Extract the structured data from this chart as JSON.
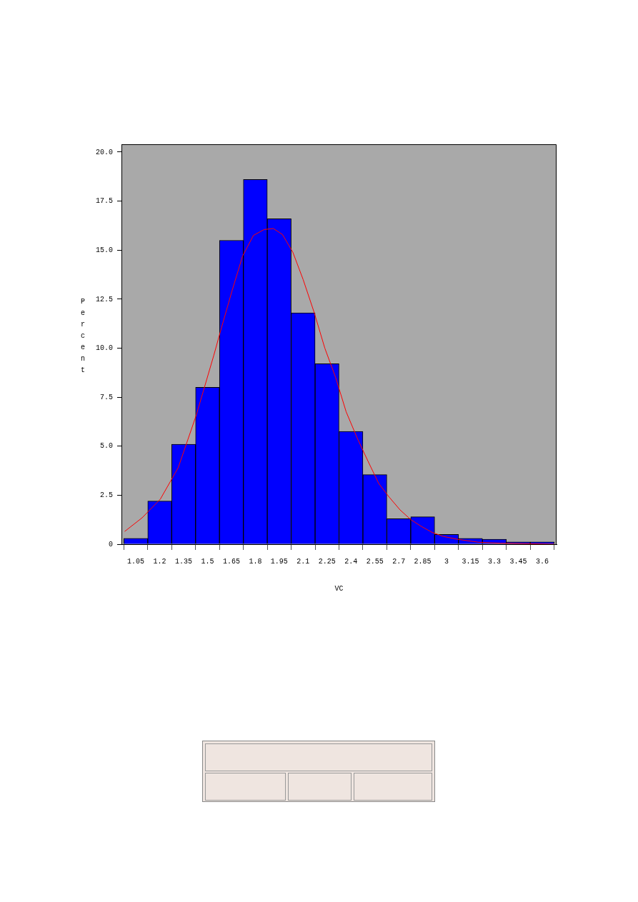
{
  "chart_data": {
    "type": "histogram",
    "xlabel": "VC",
    "ylabel": "Percent",
    "bins": [
      0.975,
      1.125,
      1.275,
      1.425,
      1.575,
      1.725,
      1.875,
      2.025,
      2.175,
      2.325,
      2.475,
      2.625,
      2.775,
      2.925,
      3.075,
      3.225,
      3.375,
      3.525,
      3.675
    ],
    "values": [
      0.3,
      2.2,
      5.1,
      8.0,
      15.5,
      18.6,
      16.6,
      11.8,
      9.2,
      5.75,
      3.55,
      1.3,
      1.4,
      0.5,
      0.3,
      0.25,
      0.12,
      0.12
    ],
    "color": "#0000ff",
    "series": [
      {
        "type": "line",
        "color": "#ff0000",
        "x": [
          0.98,
          1.09,
          1.204,
          1.316,
          1.43,
          1.54,
          1.586,
          1.653,
          1.72,
          1.788,
          1.855,
          1.913,
          1.97,
          2.035,
          2.1,
          2.17,
          2.236,
          2.304,
          2.37,
          2.44,
          2.506,
          2.574,
          2.64,
          2.708,
          2.776,
          2.843,
          2.91,
          2.978,
          3.068,
          3.2,
          3.337,
          3.675
        ],
        "values": [
          0.65,
          1.35,
          2.3,
          3.9,
          6.6,
          9.65,
          11.0,
          12.9,
          14.7,
          15.75,
          16.05,
          16.1,
          15.8,
          14.9,
          13.5,
          11.8,
          10.0,
          8.5,
          6.75,
          5.4,
          4.25,
          3.1,
          2.4,
          1.75,
          1.25,
          0.9,
          0.6,
          0.4,
          0.25,
          0.1,
          0.05,
          0.0
        ]
      }
    ],
    "xlim": [
      0.96,
      3.69
    ],
    "xticks": [
      1.05,
      1.2,
      1.35,
      1.5,
      1.65,
      1.8,
      1.95,
      2.1,
      2.25,
      2.4,
      2.55,
      2.7,
      2.85,
      3,
      3.15,
      3.3,
      3.45,
      3.6
    ],
    "ylim": [
      0,
      20.4
    ],
    "yticks": [
      0,
      2.5,
      {
        "value": 5,
        "label": "5.0"
      },
      7.5,
      {
        "value": 10,
        "label": "10.0"
      },
      12.5,
      {
        "value": 15,
        "label": "15.0"
      },
      17.5,
      {
        "value": 20,
        "label": "20.0"
      }
    ],
    "grid": false,
    "legend": false
  }
}
